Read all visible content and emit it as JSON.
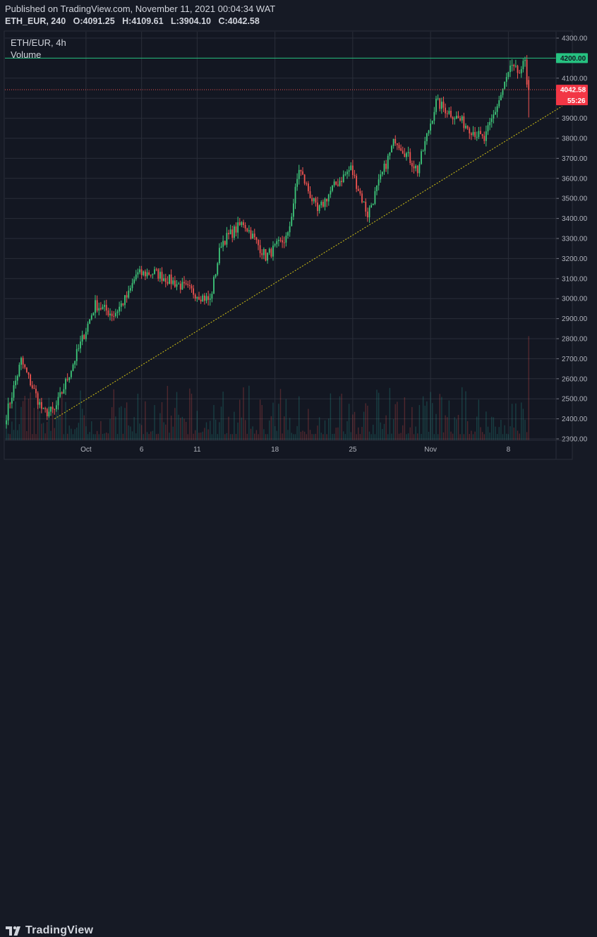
{
  "header": {
    "published": "Published on TradingView.com, November 11, 2021 00:04:34 WAT",
    "symbol_line": "ETH_EUR, 240",
    "open_label": "O:",
    "open": "4091.25",
    "high_label": "H:",
    "high": "4109.61",
    "low_label": "L:",
    "low": "3904.10",
    "close_label": "C:",
    "close": "4042.58"
  },
  "legend": {
    "symbol": "ETH/EUR, 4h",
    "volume": "Volume"
  },
  "branding": {
    "logo_text": "TradingView"
  },
  "colors": {
    "up": "#26a69a",
    "up_candle": "#3ec77a",
    "down": "#ef5350",
    "background": "#131722",
    "grid": "#2a2e39",
    "resistance_line": "#26c281",
    "trendline": "#d4c414",
    "badge_green": "#26c281",
    "badge_red": "#f23645"
  },
  "chart_data": {
    "type": "candlestick",
    "symbol": "ETH/EUR",
    "interval": "4h",
    "ylim": [
      2290,
      4320
    ],
    "y_ticks": [
      "4300.00",
      "4100.00",
      "4000.00",
      "3900.00",
      "3800.00",
      "3700.00",
      "3600.00",
      "3500.00",
      "3400.00",
      "3300.00",
      "3200.00",
      "3100.00",
      "3000.00",
      "2900.00",
      "2800.00",
      "2700.00",
      "2600.00",
      "2500.00",
      "2400.00",
      "2300.00"
    ],
    "x_ticks": [
      {
        "label": "Oct",
        "bar": 43
      },
      {
        "label": "6",
        "bar": 73
      },
      {
        "label": "11",
        "bar": 103
      },
      {
        "label": "18",
        "bar": 145
      },
      {
        "label": "25",
        "bar": 187
      },
      {
        "label": "Nov",
        "bar": 229
      },
      {
        "label": "8",
        "bar": 271
      }
    ],
    "bar_count": 283,
    "key_prices": [
      {
        "bar": 0,
        "price": 2420
      },
      {
        "bar": 8,
        "price": 2690
      },
      {
        "bar": 20,
        "price": 2430
      },
      {
        "bar": 26,
        "price": 2440
      },
      {
        "bar": 35,
        "price": 2650
      },
      {
        "bar": 48,
        "price": 2970
      },
      {
        "bar": 58,
        "price": 2920
      },
      {
        "bar": 66,
        "price": 3020
      },
      {
        "bar": 70,
        "price": 3120
      },
      {
        "bar": 80,
        "price": 3130
      },
      {
        "bar": 95,
        "price": 3060
      },
      {
        "bar": 110,
        "price": 2990
      },
      {
        "bar": 116,
        "price": 3280
      },
      {
        "bar": 128,
        "price": 3380
      },
      {
        "bar": 140,
        "price": 3210
      },
      {
        "bar": 152,
        "price": 3310
      },
      {
        "bar": 158,
        "price": 3650
      },
      {
        "bar": 168,
        "price": 3430
      },
      {
        "bar": 176,
        "price": 3550
      },
      {
        "bar": 186,
        "price": 3650
      },
      {
        "bar": 195,
        "price": 3420
      },
      {
        "bar": 210,
        "price": 3800
      },
      {
        "bar": 222,
        "price": 3640
      },
      {
        "bar": 232,
        "price": 3980
      },
      {
        "bar": 245,
        "price": 3890
      },
      {
        "bar": 258,
        "price": 3790
      },
      {
        "bar": 266,
        "price": 3990
      },
      {
        "bar": 272,
        "price": 4150
      },
      {
        "bar": 278,
        "price": 4120
      },
      {
        "bar": 280,
        "price": 4200
      },
      {
        "bar": 281,
        "price": 4091.25
      }
    ],
    "last_candle": {
      "open": 4091.25,
      "high": 4109.61,
      "low": 3904.1,
      "close": 4042.58
    },
    "resistance_level": 4200.0,
    "resistance_label": "4200.00",
    "last_price": 4042.58,
    "last_price_label": "4042.58",
    "countdown_label": "55:26",
    "trendline": {
      "start": {
        "bar": 26,
        "price": 2400
      },
      "end": {
        "bar": 300,
        "price": 3960
      }
    },
    "volume_max_fraction": 0.3,
    "title": "ETH/EUR, 4h",
    "xlabel": "",
    "ylabel": ""
  }
}
